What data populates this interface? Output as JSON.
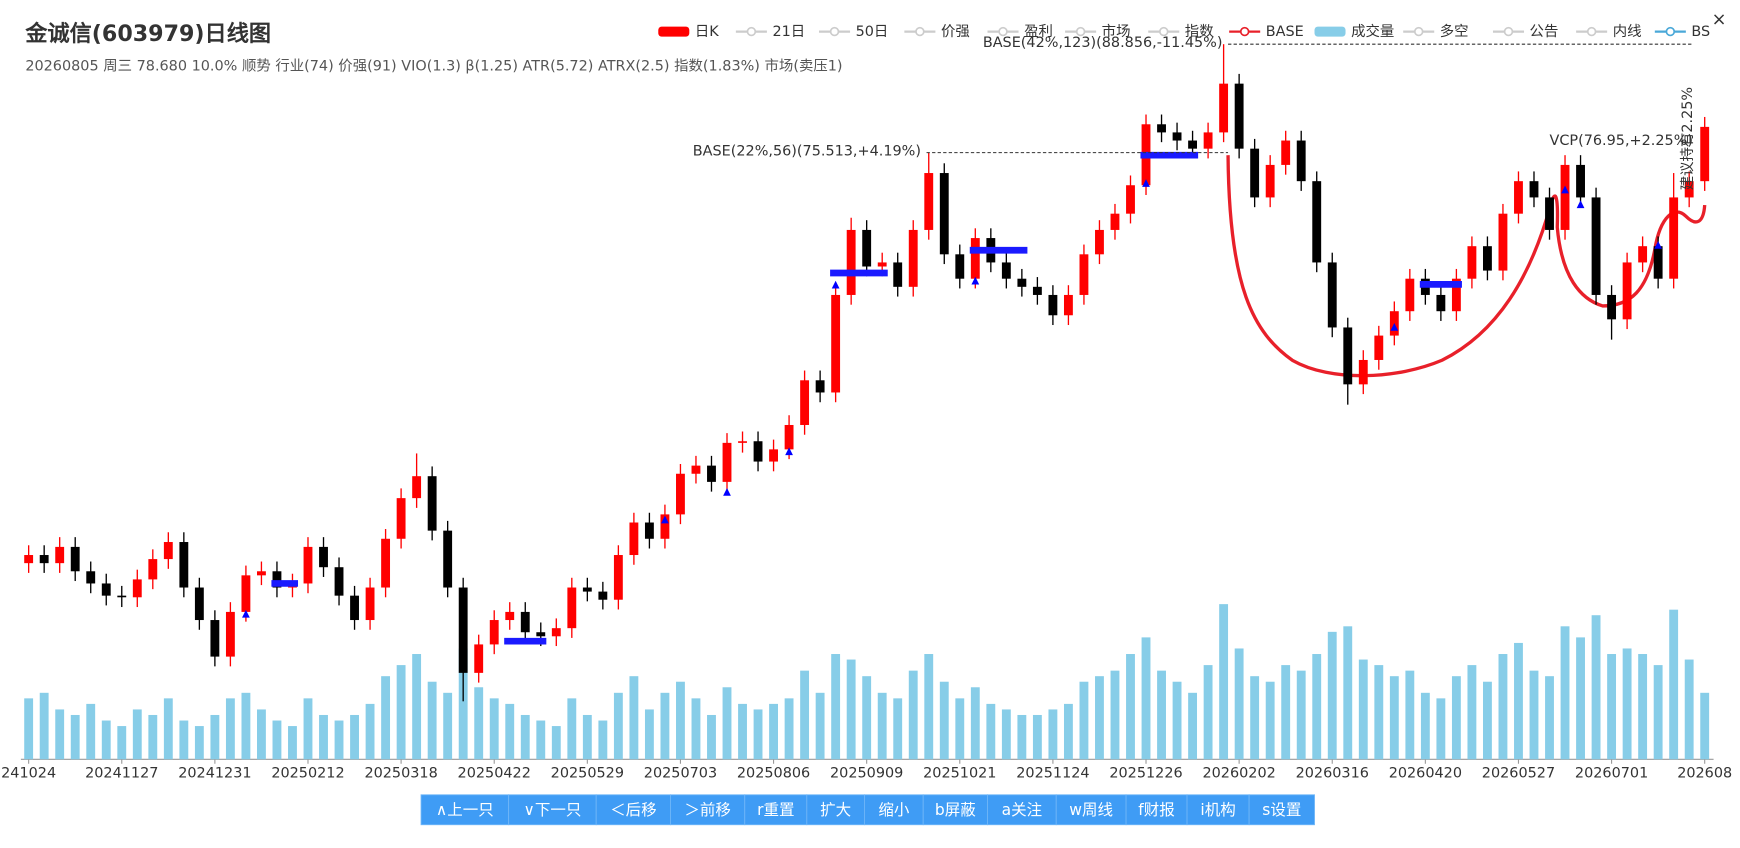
{
  "chart_data": {
    "type": "candlestick",
    "title": "金诚信(603979)日线图",
    "subtitle": "20260805 周三 78.680 10.0% 顺势 行业(74) 价强(91) VIO(1.3) β(1.25) ATR(5.72) ATRX(2.5) 指数(1.83%) 市场(卖压1)",
    "legend": [
      {
        "name": "日K",
        "color": "#ff0000",
        "style": "rect",
        "active": true
      },
      {
        "name": "21日",
        "color": "#cccccc",
        "style": "line",
        "active": false
      },
      {
        "name": "50日",
        "color": "#cccccc",
        "style": "line",
        "active": false
      },
      {
        "name": "价强",
        "color": "#cccccc",
        "style": "line",
        "active": false
      },
      {
        "name": "盈利",
        "color": "#cccccc",
        "style": "line",
        "active": false
      },
      {
        "name": "市场",
        "color": "#cccccc",
        "style": "line",
        "active": false
      },
      {
        "name": "指数",
        "color": "#cccccc",
        "style": "line",
        "active": false
      },
      {
        "name": "BASE",
        "color": "#e8202a",
        "style": "line",
        "active": true
      },
      {
        "name": "成交量",
        "color": "#87cde8",
        "style": "rect",
        "active": true
      },
      {
        "name": "多空",
        "color": "#cccccc",
        "style": "line",
        "active": false
      },
      {
        "name": "公告",
        "color": "#cccccc",
        "style": "line",
        "active": false
      },
      {
        "name": "内线",
        "color": "#cccccc",
        "style": "line",
        "active": false
      },
      {
        "name": "BS",
        "color": "#4aa8d8",
        "style": "line",
        "active": true
      }
    ],
    "categories": [
      "241024",
      null,
      null,
      null,
      null,
      null,
      "20241127",
      null,
      null,
      null,
      null,
      null,
      "20241231",
      null,
      null,
      null,
      null,
      null,
      "20250212",
      null,
      null,
      null,
      null,
      null,
      "20250318",
      null,
      null,
      null,
      null,
      null,
      "20250422",
      null,
      null,
      null,
      null,
      null,
      "20250529",
      null,
      null,
      null,
      null,
      null,
      "20250703",
      null,
      null,
      null,
      null,
      null,
      "20250806",
      null,
      null,
      null,
      null,
      null,
      "20250909",
      null,
      null,
      null,
      null,
      null,
      "20251021",
      null,
      null,
      null,
      null,
      null,
      "20251124",
      null,
      null,
      null,
      null,
      null,
      "20251226",
      null,
      null,
      null,
      null,
      null,
      "20260202",
      null,
      null,
      null,
      null,
      null,
      "20260316",
      null,
      null,
      null,
      null,
      null,
      "20260420",
      null,
      null,
      null,
      null,
      null,
      "20260527",
      null,
      null,
      null,
      null,
      null,
      "20260701",
      null,
      null,
      null,
      null,
      null,
      "202608"
    ],
    "ohlc": [
      [
        25,
        27.2,
        23.8,
        26
      ],
      [
        26,
        27.2,
        23.8,
        25
      ],
      [
        25,
        28.2,
        23.8,
        27
      ],
      [
        27,
        28.2,
        22.8,
        24
      ],
      [
        24,
        25.2,
        21.3,
        22.5
      ],
      [
        22.5,
        23.7,
        19.8,
        21
      ],
      [
        21,
        22.2,
        19.6,
        20.8
      ],
      [
        20.8,
        24.2,
        19.6,
        23
      ],
      [
        23,
        26.7,
        21.8,
        25.5
      ],
      [
        25.5,
        28.8,
        24.3,
        27.6
      ],
      [
        27.6,
        28.8,
        20.8,
        22
      ],
      [
        22,
        23.2,
        16.8,
        18
      ],
      [
        18,
        19.2,
        12.3,
        13.5
      ],
      [
        13.5,
        20.2,
        12.3,
        19
      ],
      [
        19,
        24.7,
        17.8,
        23.5
      ],
      [
        23.5,
        25.2,
        22.3,
        24
      ],
      [
        24,
        25.2,
        20.8,
        22
      ],
      [
        22,
        23.7,
        20.8,
        22.5
      ],
      [
        22.5,
        28.2,
        21.3,
        27
      ],
      [
        27,
        28.2,
        23.3,
        24.5
      ],
      [
        24.5,
        25.7,
        19.8,
        21
      ],
      [
        21,
        22.2,
        16.8,
        18
      ],
      [
        18,
        23.2,
        16.8,
        22
      ],
      [
        22,
        29.2,
        20.8,
        28
      ],
      [
        28,
        34.2,
        26.8,
        33
      ],
      [
        33,
        38.5,
        31.8,
        35.7
      ],
      [
        35.7,
        36.9,
        27.8,
        29
      ],
      [
        29,
        30.2,
        20.8,
        22
      ],
      [
        22,
        23.2,
        8,
        11.5
      ],
      [
        11.5,
        16.2,
        10.3,
        15
      ],
      [
        15,
        19.2,
        13.8,
        18
      ],
      [
        18,
        20.2,
        16.8,
        19
      ],
      [
        19,
        20.2,
        15.3,
        16.5
      ],
      [
        16.5,
        17.7,
        14.8,
        16
      ],
      [
        16,
        18.2,
        14.8,
        17
      ],
      [
        17,
        23.2,
        15.8,
        22
      ],
      [
        22,
        23.2,
        20.3,
        21.5
      ],
      [
        21.5,
        22.7,
        19.3,
        20.5
      ],
      [
        20.5,
        27.2,
        19.3,
        26
      ],
      [
        26,
        31.2,
        24.8,
        30
      ],
      [
        30,
        31.2,
        26.8,
        28
      ],
      [
        28,
        32.2,
        26.8,
        31
      ],
      [
        31,
        37.2,
        29.8,
        36
      ],
      [
        36,
        38.2,
        34.8,
        37
      ],
      [
        37,
        38.2,
        33.8,
        35
      ],
      [
        35,
        41,
        33.8,
        39.8
      ],
      [
        39.8,
        41.2,
        38.6,
        40
      ],
      [
        40,
        41.2,
        36.3,
        37.5
      ],
      [
        37.5,
        40.2,
        36.3,
        39
      ],
      [
        39,
        43.2,
        37.8,
        42
      ],
      [
        42,
        48.7,
        40.8,
        47.5
      ],
      [
        47.5,
        48.7,
        44.8,
        46
      ],
      [
        46,
        59.2,
        44.8,
        58
      ],
      [
        58,
        67.5,
        56.8,
        66
      ],
      [
        66,
        67.2,
        60.3,
        61.5
      ],
      [
        61.5,
        63.2,
        60.3,
        62
      ],
      [
        62,
        63.2,
        57.8,
        59
      ],
      [
        59,
        67.2,
        57.8,
        66
      ],
      [
        66,
        75.513,
        64.8,
        73
      ],
      [
        73,
        74.2,
        61.8,
        63
      ],
      [
        63,
        64.2,
        58.8,
        60
      ],
      [
        60,
        66.2,
        58.8,
        65
      ],
      [
        65,
        66.2,
        60.8,
        62
      ],
      [
        62,
        63.2,
        58.8,
        60
      ],
      [
        60,
        61.2,
        57.8,
        59
      ],
      [
        59,
        60.2,
        56.8,
        58
      ],
      [
        58,
        59.2,
        54.3,
        55.5
      ],
      [
        55.5,
        59.2,
        54.3,
        58
      ],
      [
        58,
        64.2,
        56.8,
        63
      ],
      [
        63,
        67.2,
        61.8,
        66
      ],
      [
        66,
        69.2,
        64.8,
        68
      ],
      [
        68,
        72.7,
        66.8,
        71.5
      ],
      [
        71.5,
        80.2,
        70.3,
        79
      ],
      [
        79,
        80.2,
        76.8,
        78
      ],
      [
        78,
        79.2,
        75.8,
        77
      ],
      [
        77,
        78.2,
        74.8,
        76
      ],
      [
        76,
        79.2,
        74.8,
        78
      ],
      [
        78,
        88.856,
        76.8,
        84
      ],
      [
        84,
        85.2,
        74.8,
        76
      ],
      [
        76,
        77.2,
        68.8,
        70
      ],
      [
        70,
        75.2,
        68.8,
        74
      ],
      [
        74,
        78.2,
        72.8,
        77
      ],
      [
        77,
        78.2,
        70.8,
        72
      ],
      [
        72,
        73.2,
        60.8,
        62
      ],
      [
        62,
        63.2,
        52.8,
        54
      ],
      [
        54,
        55.2,
        44.5,
        47
      ],
      [
        47,
        51.2,
        45.8,
        50
      ],
      [
        50,
        54.2,
        48.8,
        53
      ],
      [
        53,
        57.2,
        51.8,
        56
      ],
      [
        56,
        61.2,
        54.8,
        60
      ],
      [
        60,
        61.2,
        56.8,
        58
      ],
      [
        58,
        59.2,
        54.8,
        56
      ],
      [
        56,
        61.2,
        54.8,
        60
      ],
      [
        60,
        65.2,
        58.8,
        64
      ],
      [
        64,
        65.2,
        59.8,
        61
      ],
      [
        61,
        69.2,
        59.8,
        68
      ],
      [
        68,
        73.2,
        66.8,
        72
      ],
      [
        72,
        73.2,
        68.8,
        70
      ],
      [
        70,
        71.2,
        64.8,
        66
      ],
      [
        66,
        75.2,
        64.8,
        74
      ],
      [
        74,
        75.2,
        68.8,
        70
      ],
      [
        70,
        71.2,
        56.8,
        58
      ],
      [
        58,
        59.2,
        52.5,
        55
      ],
      [
        55,
        63.2,
        53.8,
        62
      ],
      [
        62,
        65.2,
        60.8,
        64
      ],
      [
        64,
        65.2,
        58.8,
        60
      ],
      [
        60,
        73,
        58.8,
        70
      ],
      [
        70,
        73.2,
        68.8,
        72
      ],
      [
        72,
        79.9,
        70.8,
        78.68
      ]
    ],
    "up_color": "#ff0000",
    "down_color": "#000000",
    "ylim": [
      7,
      90.2
    ],
    "volume": [
      55,
      60,
      45,
      40,
      50,
      35,
      30,
      45,
      40,
      55,
      35,
      30,
      40,
      55,
      60,
      45,
      35,
      30,
      55,
      40,
      35,
      40,
      50,
      75,
      85,
      95,
      70,
      60,
      100,
      65,
      55,
      50,
      40,
      35,
      30,
      55,
      40,
      35,
      60,
      75,
      45,
      60,
      70,
      55,
      40,
      65,
      50,
      45,
      50,
      55,
      80,
      60,
      95,
      90,
      75,
      60,
      55,
      80,
      95,
      70,
      55,
      65,
      50,
      45,
      40,
      40,
      45,
      50,
      70,
      75,
      80,
      95,
      110,
      80,
      70,
      60,
      85,
      140,
      100,
      75,
      70,
      85,
      80,
      95,
      115,
      120,
      90,
      85,
      75,
      80,
      60,
      55,
      75,
      85,
      70,
      95,
      105,
      80,
      75,
      120,
      110,
      130,
      95,
      100,
      95,
      85,
      135,
      90,
      60
    ],
    "volume_color": "#87cde8",
    "volume_ylim": [
      0,
      150
    ],
    "base_bars": {
      "color": "#1a1aff",
      "items": [
        {
          "start": 16,
          "end": 17,
          "value": 22.5
        },
        {
          "start": 31,
          "end": 33,
          "value": 15.4
        },
        {
          "start": 52,
          "end": 55,
          "value": 60.7
        },
        {
          "start": 61,
          "end": 64,
          "value": 63.5
        },
        {
          "start": 72,
          "end": 75,
          "value": 75.2
        },
        {
          "start": 90,
          "end": 92,
          "value": 59.3
        }
      ]
    },
    "signals": {
      "color": "#0000ff",
      "items": [
        {
          "x": 14,
          "value": 18.7
        },
        {
          "x": 41,
          "value": 30.3
        },
        {
          "x": 45,
          "value": 33.7
        },
        {
          "x": 49,
          "value": 38.7
        },
        {
          "x": 52,
          "value": 59.2
        },
        {
          "x": 61,
          "value": 59.7
        },
        {
          "x": 72,
          "value": 71.7
        },
        {
          "x": 88,
          "value": 54
        },
        {
          "x": 99,
          "value": 70.9
        },
        {
          "x": 100,
          "value": 69.1
        },
        {
          "x": 105,
          "value": 64.1
        }
      ]
    },
    "annotations": [
      {
        "text": "BASE(42%,123)(88.856,-11.45%)",
        "value": 88.856
      },
      {
        "text": "BASE(22%,56)(75.513,+4.19%)",
        "value": 75.513
      },
      {
        "text": "VCP(76.95,+2.25%)",
        "value": 76.95
      }
    ],
    "vertical_note": "建议持有2.25%",
    "close": "×",
    "buttons": [
      "∧上一只",
      "∨下一只",
      "＜后移",
      "＞前移",
      "r重置",
      "扩大",
      "缩小",
      "b屏蔽",
      "a关注",
      "w周线",
      "f财报",
      "i机构",
      "s设置"
    ]
  }
}
